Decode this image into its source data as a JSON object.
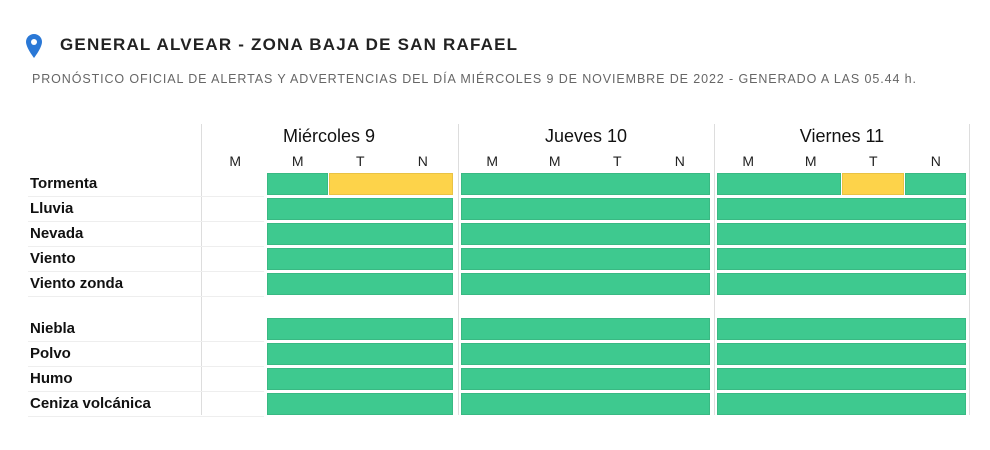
{
  "header": {
    "title": "GENERAL ALVEAR - ZONA BAJA DE SAN RAFAEL",
    "subtitle": "PRONÓSTICO OFICIAL DE ALERTAS Y ADVERTENCIAS DEL DÍA MIÉRCOLES 9 DE NOVIEMBRE DE 2022 - GENERADO A LAS 05.44 h."
  },
  "days": [
    {
      "name": "Miércoles 9",
      "periods": [
        "M",
        "M",
        "T",
        "N"
      ]
    },
    {
      "name": "Jueves 10",
      "periods": [
        "M",
        "M",
        "T",
        "N"
      ]
    },
    {
      "name": "Viernes 11",
      "periods": [
        "M",
        "M",
        "T",
        "N"
      ]
    }
  ],
  "groups": [
    {
      "rows": [
        {
          "label": "Tormenta",
          "cells": [
            [
              null,
              "#3ec98f",
              "#fdd34a",
              "#fdd34a"
            ],
            [
              "#3ec98f",
              "#3ec98f",
              "#3ec98f",
              "#3ec98f"
            ],
            [
              "#3ec98f",
              "#3ec98f",
              "#fdd34a",
              "#3ec98f"
            ]
          ]
        },
        {
          "label": "Lluvia",
          "cells": [
            [
              null,
              "#3ec98f",
              "#3ec98f",
              "#3ec98f"
            ],
            [
              "#3ec98f",
              "#3ec98f",
              "#3ec98f",
              "#3ec98f"
            ],
            [
              "#3ec98f",
              "#3ec98f",
              "#3ec98f",
              "#3ec98f"
            ]
          ]
        },
        {
          "label": "Nevada",
          "cells": [
            [
              null,
              "#3ec98f",
              "#3ec98f",
              "#3ec98f"
            ],
            [
              "#3ec98f",
              "#3ec98f",
              "#3ec98f",
              "#3ec98f"
            ],
            [
              "#3ec98f",
              "#3ec98f",
              "#3ec98f",
              "#3ec98f"
            ]
          ]
        },
        {
          "label": "Viento",
          "cells": [
            [
              null,
              "#3ec98f",
              "#3ec98f",
              "#3ec98f"
            ],
            [
              "#3ec98f",
              "#3ec98f",
              "#3ec98f",
              "#3ec98f"
            ],
            [
              "#3ec98f",
              "#3ec98f",
              "#3ec98f",
              "#3ec98f"
            ]
          ]
        },
        {
          "label": "Viento zonda",
          "cells": [
            [
              null,
              "#3ec98f",
              "#3ec98f",
              "#3ec98f"
            ],
            [
              "#3ec98f",
              "#3ec98f",
              "#3ec98f",
              "#3ec98f"
            ],
            [
              "#3ec98f",
              "#3ec98f",
              "#3ec98f",
              "#3ec98f"
            ]
          ]
        }
      ]
    },
    {
      "rows": [
        {
          "label": "Niebla",
          "cells": [
            [
              null,
              "#3ec98f",
              "#3ec98f",
              "#3ec98f"
            ],
            [
              "#3ec98f",
              "#3ec98f",
              "#3ec98f",
              "#3ec98f"
            ],
            [
              "#3ec98f",
              "#3ec98f",
              "#3ec98f",
              "#3ec98f"
            ]
          ]
        },
        {
          "label": "Polvo",
          "cells": [
            [
              null,
              "#3ec98f",
              "#3ec98f",
              "#3ec98f"
            ],
            [
              "#3ec98f",
              "#3ec98f",
              "#3ec98f",
              "#3ec98f"
            ],
            [
              "#3ec98f",
              "#3ec98f",
              "#3ec98f",
              "#3ec98f"
            ]
          ]
        },
        {
          "label": "Humo",
          "cells": [
            [
              null,
              "#3ec98f",
              "#3ec98f",
              "#3ec98f"
            ],
            [
              "#3ec98f",
              "#3ec98f",
              "#3ec98f",
              "#3ec98f"
            ],
            [
              "#3ec98f",
              "#3ec98f",
              "#3ec98f",
              "#3ec98f"
            ]
          ]
        },
        {
          "label": "Ceniza volcánica",
          "cells": [
            [
              null,
              "#3ec98f",
              "#3ec98f",
              "#3ec98f"
            ],
            [
              "#3ec98f",
              "#3ec98f",
              "#3ec98f",
              "#3ec98f"
            ],
            [
              "#3ec98f",
              "#3ec98f",
              "#3ec98f",
              "#3ec98f"
            ]
          ]
        }
      ]
    }
  ]
}
